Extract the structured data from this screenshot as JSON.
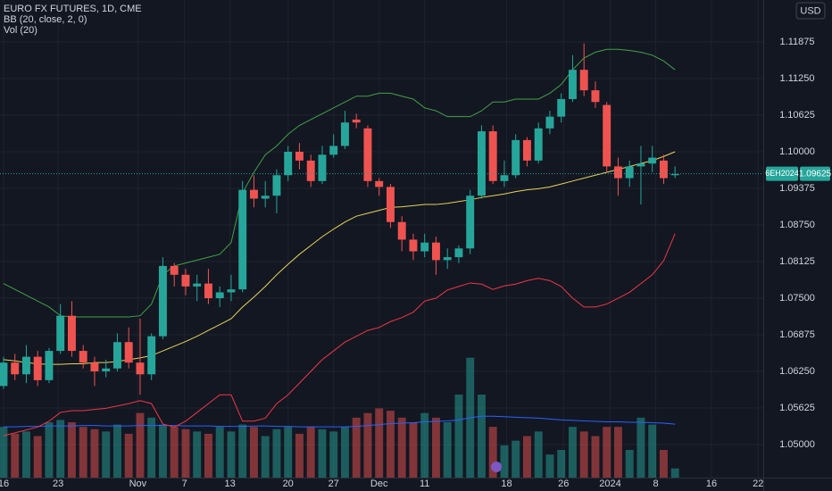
{
  "chart_data": {
    "type": "candlestick",
    "title": "EURO FX FUTURES, 1D, CME",
    "indicator_bb": "BB (20, close, 2, 0)",
    "indicator_vol": "Vol (20)",
    "currency": "USD",
    "symbol": "6EH2024",
    "last_price": 1.09625,
    "up_color": "#26a69a",
    "down_color": "#ef5350",
    "bb_upper_color": "#43a047",
    "bb_middle_color": "#e6d55a",
    "bb_lower_color": "#f23645",
    "vol_ma_color": "#2962ff",
    "grid": true,
    "xlim": [
      -0.31,
      66.75
    ],
    "xticks": [
      {
        "value": 0,
        "label": "16"
      },
      {
        "value": 4.8,
        "label": "23"
      },
      {
        "value": 11.8,
        "label": "Nov"
      },
      {
        "value": 15.9,
        "label": "7"
      },
      {
        "value": 19.9,
        "label": "13"
      },
      {
        "value": 25,
        "label": "20"
      },
      {
        "value": 29,
        "label": "27"
      },
      {
        "value": 33,
        "label": "Dec"
      },
      {
        "value": 37,
        "label": "11"
      },
      {
        "value": 44.2,
        "label": "18"
      },
      {
        "value": 49.2,
        "label": "26"
      },
      {
        "value": 53.3,
        "label": "2024"
      },
      {
        "value": 57.3,
        "label": "8"
      },
      {
        "value": 62.2,
        "label": "16"
      },
      {
        "value": 66.3,
        "label": "22"
      }
    ],
    "ylim": [
      1.04436,
      1.12592
    ],
    "yticks": [
      1.11875,
      {
        "value": 1.1125,
        "label": "1.11250"
      },
      1.10625,
      {
        "value": 1.1,
        "label": "1.10000"
      },
      1.09375,
      {
        "value": 1.0875,
        "label": "1.08750"
      },
      1.08125,
      {
        "value": 1.075,
        "label": "1.07500"
      },
      1.06875,
      {
        "value": 1.0625,
        "label": "1.06250"
      },
      1.05625,
      {
        "value": 1.05,
        "label": "1.05000"
      }
    ],
    "volume_lim": [
      0,
      300
    ],
    "x": [
      0,
      1,
      2,
      3,
      4,
      5,
      6,
      7,
      8,
      9,
      10,
      11,
      12,
      13,
      14,
      15,
      16,
      17,
      18,
      19,
      20,
      21,
      22,
      23,
      24,
      25,
      26,
      27,
      28,
      29,
      30,
      31,
      32,
      33,
      34,
      35,
      36,
      37,
      38,
      39,
      40,
      41,
      42,
      43,
      44,
      45,
      46,
      47,
      48,
      49,
      50,
      51,
      52,
      53,
      54,
      55,
      56,
      57,
      58,
      59
    ],
    "open": [
      1.06,
      1.064,
      1.062,
      1.065,
      1.061,
      1.066,
      1.072,
      1.066,
      1.064,
      1.0625,
      1.063,
      1.0675,
      1.064,
      1.062,
      1.0685,
      1.0805,
      1.079,
      1.077,
      1.0775,
      1.075,
      1.076,
      1.0765,
      1.0935,
      1.092,
      1.0925,
      1.096,
      1.1,
      1.0985,
      1.095,
      1.0995,
      1.101,
      1.1055,
      1.104,
      1.095,
      1.094,
      1.088,
      1.085,
      1.083,
      1.0845,
      1.0815,
      1.082,
      1.0835,
      1.0925,
      1.1035,
      1.095,
      1.096,
      1.102,
      1.0985,
      1.104,
      1.106,
      1.109,
      1.114,
      1.1105,
      1.108,
      1.0975,
      1.0955,
      1.0975,
      1.098,
      1.0985,
      1.096
    ],
    "high": [
      1.065,
      1.0655,
      1.067,
      1.066,
      1.0665,
      1.074,
      1.0745,
      1.067,
      1.065,
      1.0645,
      1.069,
      1.07,
      1.0715,
      1.069,
      1.082,
      1.081,
      1.08,
      1.079,
      1.08,
      1.077,
      1.079,
      1.095,
      1.096,
      1.095,
      1.097,
      1.101,
      1.1015,
      1.0995,
      1.101,
      1.103,
      1.107,
      1.1065,
      1.1045,
      1.0955,
      1.0945,
      1.089,
      1.086,
      1.086,
      1.0855,
      1.0835,
      1.084,
      1.0935,
      1.1045,
      1.1045,
      1.0985,
      1.103,
      1.1025,
      1.105,
      1.107,
      1.11,
      1.1165,
      1.1185,
      1.112,
      1.1085,
      1.099,
      1.0985,
      1.101,
      1.101,
      1.0995,
      1.0975
    ],
    "low": [
      1.0595,
      1.061,
      1.0605,
      1.06,
      1.0605,
      1.0655,
      1.065,
      1.063,
      1.06,
      1.0615,
      1.0625,
      1.063,
      1.0585,
      1.061,
      1.068,
      1.077,
      1.0755,
      1.0745,
      1.074,
      1.0735,
      1.0745,
      1.076,
      1.0905,
      1.0905,
      1.0895,
      1.095,
      1.097,
      1.094,
      1.0945,
      1.099,
      1.1005,
      1.104,
      1.094,
      1.0925,
      1.087,
      1.083,
      1.0815,
      1.082,
      1.079,
      1.08,
      1.081,
      1.0825,
      1.092,
      1.0945,
      1.094,
      1.0955,
      1.0975,
      1.098,
      1.103,
      1.105,
      1.1085,
      1.1095,
      1.1075,
      1.0965,
      1.0925,
      1.094,
      1.091,
      1.0965,
      1.0945,
      1.0955
    ],
    "close": [
      1.064,
      1.062,
      1.065,
      1.061,
      1.066,
      1.072,
      1.066,
      1.064,
      1.0625,
      1.063,
      1.0675,
      1.064,
      1.062,
      1.0685,
      1.0805,
      1.079,
      1.077,
      1.0775,
      1.075,
      1.076,
      1.0765,
      1.0935,
      1.092,
      1.0925,
      1.096,
      1.1,
      1.0985,
      1.095,
      1.0995,
      1.101,
      1.105,
      1.105,
      1.095,
      1.094,
      1.088,
      1.085,
      1.083,
      1.0845,
      1.0815,
      1.082,
      1.0835,
      1.0925,
      1.1035,
      1.095,
      1.096,
      1.102,
      1.0985,
      1.104,
      1.106,
      1.109,
      1.114,
      1.1105,
      1.1085,
      1.0975,
      1.0955,
      1.0975,
      1.098,
      1.099,
      1.0955,
      1.0962
    ],
    "bb_upper": [
      1.0775,
      1.0765,
      1.0755,
      1.0745,
      1.0735,
      1.072,
      1.0718,
      1.0718,
      1.0718,
      1.0718,
      1.0718,
      1.0718,
      1.072,
      1.074,
      1.079,
      1.0805,
      1.081,
      1.0815,
      1.082,
      1.0825,
      1.0845,
      1.093,
      1.0965,
      1.0995,
      1.101,
      1.103,
      1.1045,
      1.1055,
      1.1065,
      1.1075,
      1.1085,
      1.1095,
      1.1095,
      1.11,
      1.11,
      1.1095,
      1.109,
      1.1075,
      1.107,
      1.106,
      1.106,
      1.106,
      1.107,
      1.1085,
      1.1085,
      1.109,
      1.109,
      1.109,
      1.11,
      1.1115,
      1.114,
      1.116,
      1.117,
      1.1175,
      1.1175,
      1.1173,
      1.117,
      1.1165,
      1.1155,
      1.114
    ],
    "bb_middle": [
      1.0645,
      1.0643,
      1.064,
      1.0638,
      1.0637,
      1.0637,
      1.0638,
      1.0638,
      1.064,
      1.064,
      1.0642,
      1.0645,
      1.0648,
      1.0652,
      1.066,
      1.0668,
      1.0676,
      1.0685,
      1.0695,
      1.0705,
      1.0715,
      1.0735,
      1.0752,
      1.077,
      1.079,
      1.0808,
      1.0825,
      1.084,
      1.0855,
      1.0868,
      1.088,
      1.089,
      1.0895,
      1.09,
      1.0905,
      1.0906,
      1.0908,
      1.091,
      1.091,
      1.0912,
      1.0915,
      1.0918,
      1.0922,
      1.0925,
      1.0928,
      1.0932,
      1.0935,
      1.0937,
      1.094,
      1.0945,
      1.095,
      1.0955,
      1.096,
      1.0965,
      1.097,
      1.0975,
      1.098,
      1.0985,
      1.0992,
      1.1
    ],
    "bb_lower": [
      1.0515,
      1.052,
      1.0525,
      1.053,
      1.054,
      1.0555,
      1.0558,
      1.0558,
      1.056,
      1.0562,
      1.0566,
      1.057,
      1.0575,
      1.057,
      1.0535,
      1.053,
      1.054,
      1.0555,
      1.057,
      1.0585,
      1.0585,
      1.054,
      1.054,
      1.0545,
      1.057,
      1.0585,
      1.0605,
      1.0625,
      1.0645,
      1.066,
      1.0675,
      1.0685,
      1.0695,
      1.07,
      1.071,
      1.0717,
      1.0726,
      1.0745,
      1.075,
      1.0764,
      1.077,
      1.0776,
      1.0774,
      1.0765,
      1.0771,
      1.0774,
      1.078,
      1.0784,
      1.078,
      1.077,
      1.075,
      1.0735,
      1.0735,
      1.074,
      1.075,
      1.076,
      1.0775,
      1.079,
      1.0814,
      1.086
    ],
    "volume": [
      110,
      95,
      100,
      90,
      120,
      125,
      120,
      110,
      105,
      100,
      115,
      95,
      140,
      130,
      115,
      110,
      105,
      100,
      95,
      110,
      100,
      115,
      110,
      90,
      105,
      110,
      95,
      110,
      105,
      100,
      110,
      130,
      140,
      150,
      145,
      130,
      120,
      140,
      130,
      120,
      180,
      260,
      180,
      110,
      70,
      80,
      90,
      100,
      50,
      60,
      110,
      100,
      90,
      110,
      110,
      60,
      130,
      115,
      60,
      20
    ],
    "volume_ma": [
      110,
      110,
      111,
      111,
      112,
      112,
      112,
      113,
      113,
      112,
      112,
      112,
      113,
      113,
      113,
      113,
      112,
      112,
      112,
      111,
      111,
      111,
      112,
      112,
      111,
      111,
      110,
      110,
      110,
      110,
      110,
      111,
      113,
      115,
      117,
      118,
      119,
      121,
      122,
      123,
      125,
      130,
      133,
      133,
      132,
      131,
      130,
      129,
      127,
      125,
      124,
      123,
      122,
      121,
      121,
      120,
      120,
      119,
      118,
      116
    ]
  }
}
